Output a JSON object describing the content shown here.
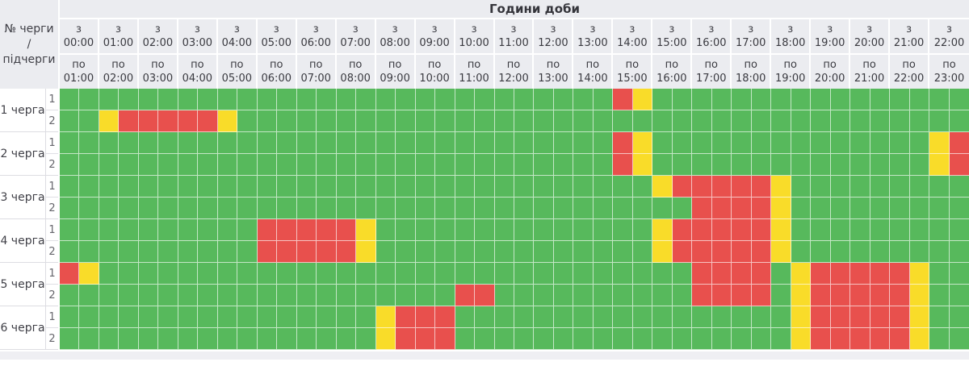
{
  "header": {
    "title": "Години доби",
    "corner_lines": [
      "№ черги",
      "/",
      "підчерги"
    ],
    "from_prefix": "з",
    "to_prefix": "по",
    "columns": [
      {
        "from": "00:00",
        "to": "01:00"
      },
      {
        "from": "01:00",
        "to": "02:00"
      },
      {
        "from": "02:00",
        "to": "03:00"
      },
      {
        "from": "03:00",
        "to": "04:00"
      },
      {
        "from": "04:00",
        "to": "05:00"
      },
      {
        "from": "05:00",
        "to": "06:00"
      },
      {
        "from": "06:00",
        "to": "07:00"
      },
      {
        "from": "07:00",
        "to": "08:00"
      },
      {
        "from": "08:00",
        "to": "09:00"
      },
      {
        "from": "09:00",
        "to": "10:00"
      },
      {
        "from": "10:00",
        "to": "11:00"
      },
      {
        "from": "11:00",
        "to": "12:00"
      },
      {
        "from": "12:00",
        "to": "13:00"
      },
      {
        "from": "13:00",
        "to": "14:00"
      },
      {
        "from": "14:00",
        "to": "15:00"
      },
      {
        "from": "15:00",
        "to": "16:00"
      },
      {
        "from": "16:00",
        "to": "17:00"
      },
      {
        "from": "17:00",
        "to": "18:00"
      },
      {
        "from": "18:00",
        "to": "19:00"
      },
      {
        "from": "19:00",
        "to": "20:00"
      },
      {
        "from": "20:00",
        "to": "21:00"
      },
      {
        "from": "21:00",
        "to": "22:00"
      },
      {
        "from": "22:00",
        "to": "23:00"
      }
    ]
  },
  "grid_structure": {
    "half_cells_per_column": 2,
    "cells_per_row": 46,
    "cell_codes": {
      "g": "power_on",
      "r": "outage",
      "y": "possible_outage"
    }
  },
  "colors": {
    "power_on": "#57b95c",
    "outage": "#e8504d",
    "possible_outage": "#f9dc29",
    "header_bg": "#ebecf0",
    "strip_bg": "#efeff3"
  },
  "queues": [
    {
      "label": "1 черга",
      "subqueues": [
        {
          "label": "1",
          "cells": "ggggggggggggggggggggggggggggrygggggggggggggggg"
        },
        {
          "label": "2",
          "cells": "ggyrrrrryggggggggggggggggggggggggggggggggggggg"
        }
      ]
    },
    {
      "label": "2 черга",
      "subqueues": [
        {
          "label": "1",
          "cells": "ggggggggggggggggggggggggggggryggggggggggggggyr"
        },
        {
          "label": "2",
          "cells": "ggggggggggggggggggggggggggggryggggggggggggggyr"
        }
      ]
    },
    {
      "label": "3 черга",
      "subqueues": [
        {
          "label": "1",
          "cells": "ggggggggggggggggggggggggggggggyrrrrryggggggggg"
        },
        {
          "label": "2",
          "cells": "ggggggggggggggggggggggggggggggggrrrryggggggggg"
        }
      ]
    },
    {
      "label": "4 черга",
      "subqueues": [
        {
          "label": "1",
          "cells": "ggggggggggrrrrryggggggggggggggyrrrrryggggggggg"
        },
        {
          "label": "2",
          "cells": "ggggggggggrrrrryggggggggggggggyrrrrryggggggggg"
        }
      ]
    },
    {
      "label": "5 черга",
      "subqueues": [
        {
          "label": "1",
          "cells": "ryggggggggggggggggggggggggggggggrrrrgyrrrrrygg"
        },
        {
          "label": "2",
          "cells": "ggggggggggggggggggggrrggggggggggrrrrgyrrrrrygg"
        }
      ]
    },
    {
      "label": "6 черга",
      "subqueues": [
        {
          "label": "1",
          "cells": "ggggggggggggggggyrrrgggggggggggggggggyrrrrrygg"
        },
        {
          "label": "2",
          "cells": "ggggggggggggggggyrrrgggggggggggggggggyrrrrrygg"
        }
      ]
    }
  ]
}
